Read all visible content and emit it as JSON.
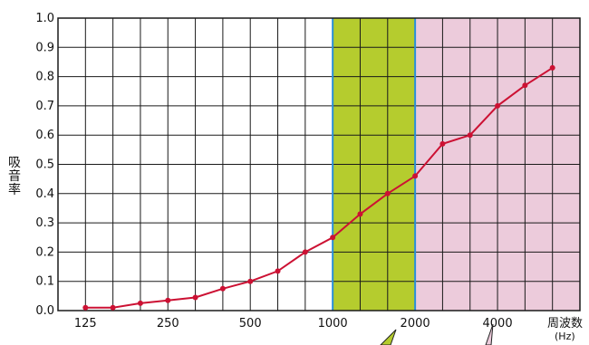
{
  "chart_data": {
    "type": "line",
    "ylabel": "吸音率",
    "xlabel": "周波数",
    "xlabel_unit": "(Hz)",
    "ylim": [
      0.0,
      1.0
    ],
    "y_ticks": [
      "0.0",
      "0.1",
      "0.2",
      "0.3",
      "0.4",
      "0.5",
      "0.6",
      "0.7",
      "0.8",
      "0.9",
      "1.0"
    ],
    "x_tick_labels": [
      {
        "index": 1,
        "label": "125"
      },
      {
        "index": 4,
        "label": "250"
      },
      {
        "index": 7,
        "label": "500"
      },
      {
        "index": 10,
        "label": "1000"
      },
      {
        "index": 13,
        "label": "2000"
      },
      {
        "index": 16,
        "label": "4000"
      }
    ],
    "grid": true,
    "regions": [
      {
        "from_index": 10,
        "to_index": 13,
        "color": "#b5cc2e"
      },
      {
        "from_index": 13,
        "to_index": 19,
        "color": "#eccbdb"
      }
    ],
    "series": [
      {
        "color": "#cc1133",
        "x_index": [
          1,
          2,
          3,
          4,
          5,
          6,
          7,
          8,
          9,
          10,
          11,
          12,
          13,
          14,
          15,
          16,
          17
        ],
        "values": [
          0.01,
          0.01,
          0.025,
          0.035,
          0.045,
          0.075,
          0.1,
          0.135,
          0.2,
          0.25,
          0.33,
          0.4,
          0.46,
          0.57,
          0.6,
          0.7,
          0.77
        ]
      }
    ],
    "extra_point": {
      "x_index": 18,
      "value": 0.83
    },
    "annotation_colors": {
      "green": "#b5cc2e",
      "pink": "#eccbdb"
    }
  }
}
